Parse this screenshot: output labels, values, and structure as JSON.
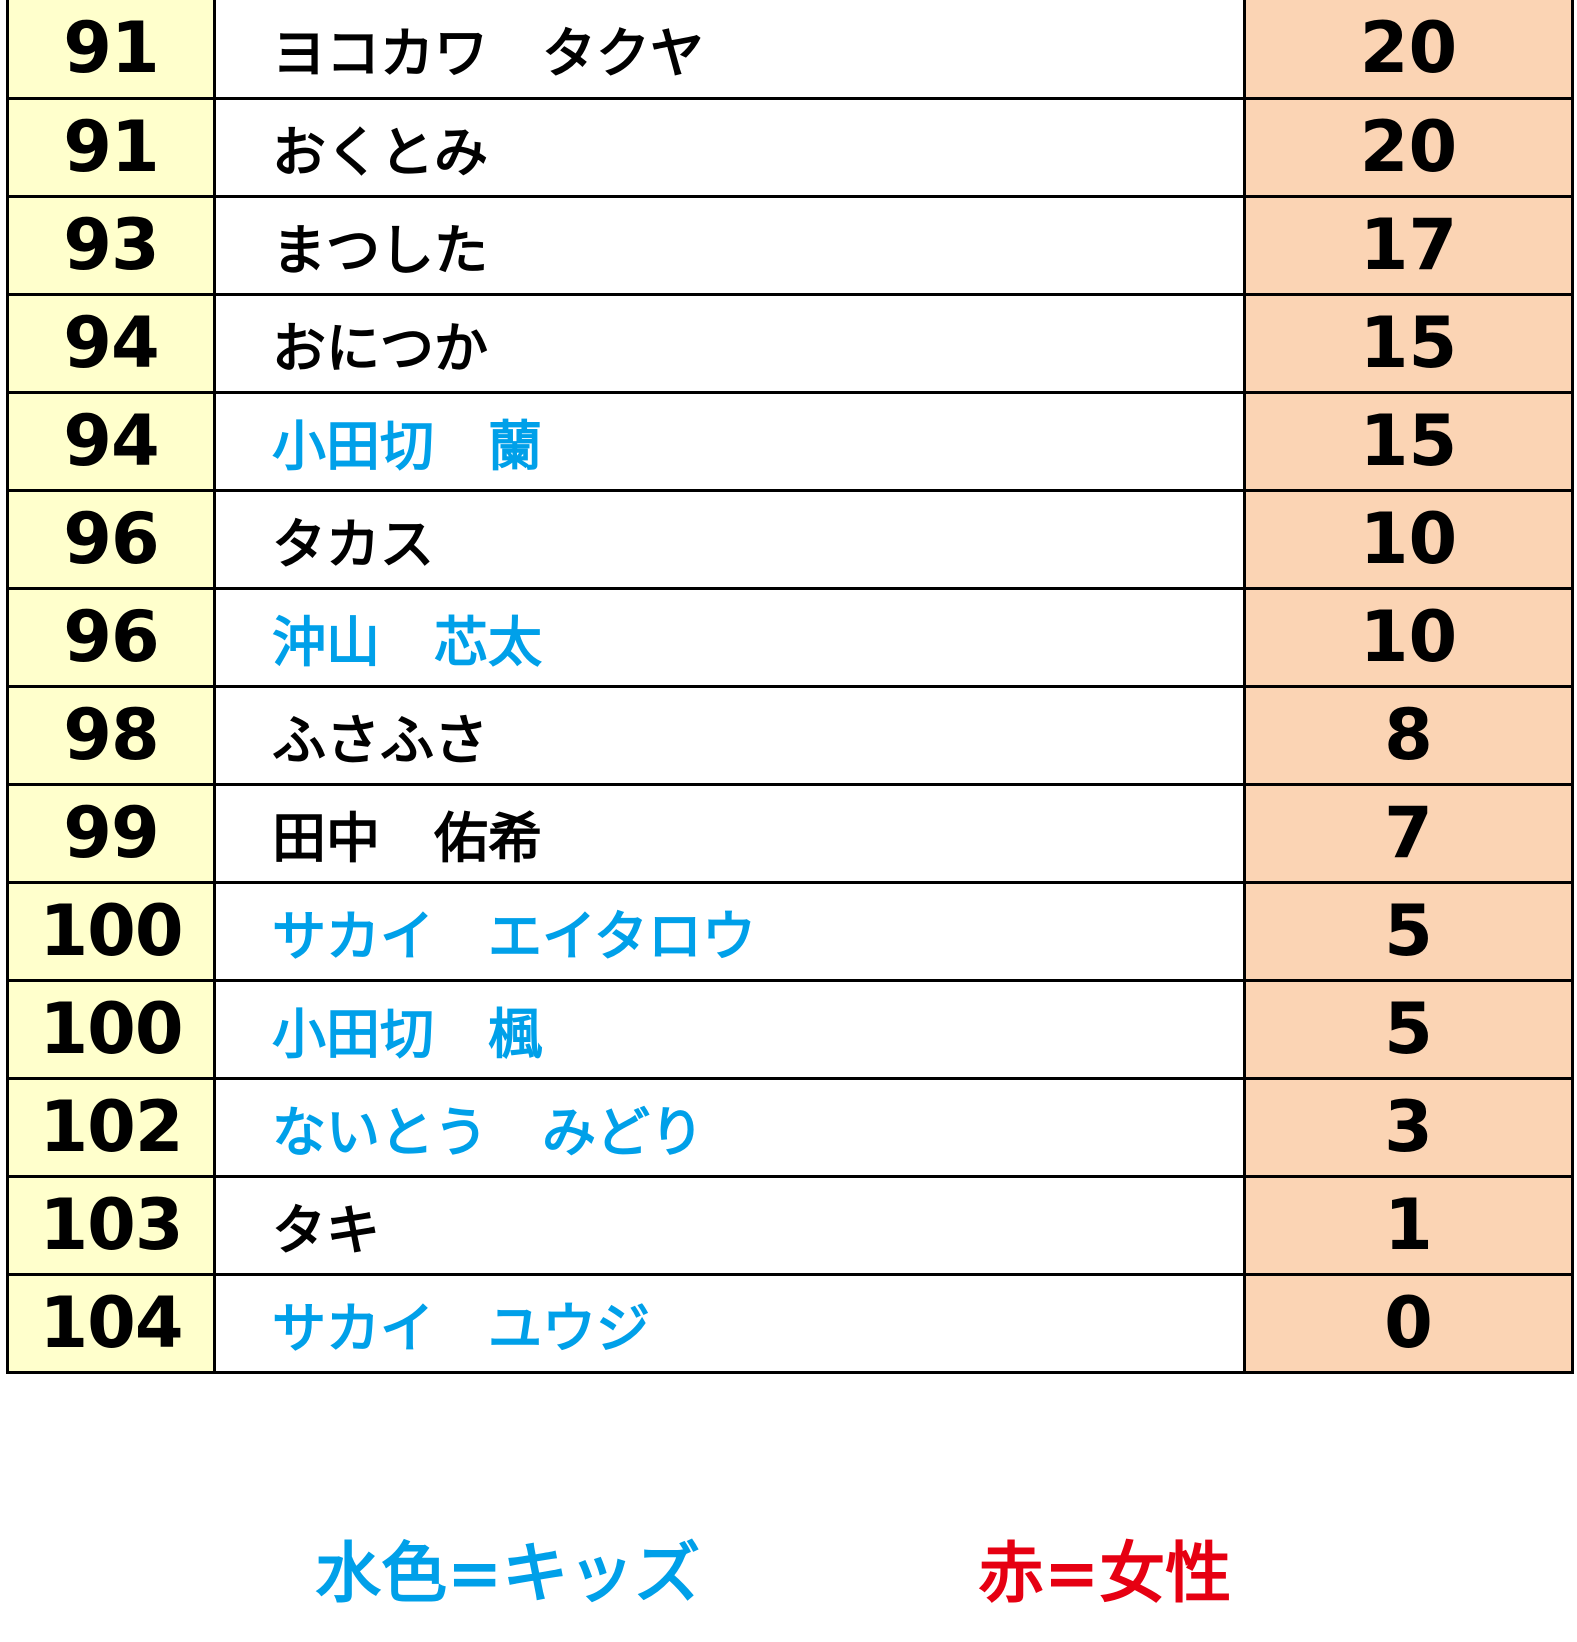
{
  "colors": {
    "rank_bg": "#ffffcc",
    "score_bg": "#fbd4b4",
    "kids": "#00a0e9",
    "female": "#e60012",
    "default": "#000000"
  },
  "rows": [
    {
      "rank": "91",
      "name": "ヨコカワ　タクヤ",
      "score": "20",
      "category": "default"
    },
    {
      "rank": "91",
      "name": "おくとみ",
      "score": "20",
      "category": "default"
    },
    {
      "rank": "93",
      "name": "まつした",
      "score": "17",
      "category": "default"
    },
    {
      "rank": "94",
      "name": "おにつか",
      "score": "15",
      "category": "default"
    },
    {
      "rank": "94",
      "name": "小田切　蘭",
      "score": "15",
      "category": "kids"
    },
    {
      "rank": "96",
      "name": "タカス",
      "score": "10",
      "category": "default"
    },
    {
      "rank": "96",
      "name": "沖山　芯太",
      "score": "10",
      "category": "kids"
    },
    {
      "rank": "98",
      "name": "ふさふさ",
      "score": "8",
      "category": "default"
    },
    {
      "rank": "99",
      "name": "田中　佑希",
      "score": "7",
      "category": "default"
    },
    {
      "rank": "100",
      "name": "サカイ　エイタロウ",
      "score": "5",
      "category": "kids"
    },
    {
      "rank": "100",
      "name": "小田切　楓",
      "score": "5",
      "category": "kids"
    },
    {
      "rank": "102",
      "name": "ないとう　みどり",
      "score": "3",
      "category": "kids"
    },
    {
      "rank": "103",
      "name": "タキ",
      "score": "1",
      "category": "default"
    },
    {
      "rank": "104",
      "name": "サカイ　ユウジ",
      "score": "0",
      "category": "kids"
    }
  ],
  "legend": {
    "kids_label": "水色=キッズ",
    "female_label": "赤=女性"
  }
}
